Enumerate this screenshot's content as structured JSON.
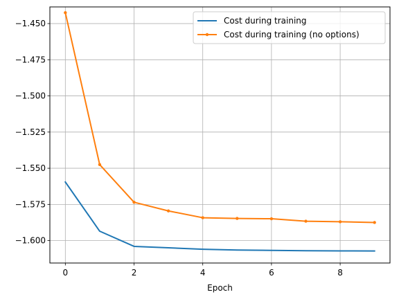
{
  "chart_data": {
    "type": "line",
    "xlabel": "Epoch",
    "ylabel": "",
    "title": "",
    "xlim": [
      -0.45,
      9.45
    ],
    "ylim": [
      -1.6155,
      -1.4385
    ],
    "xticks": [
      0,
      2,
      4,
      6,
      8
    ],
    "xtick_labels": [
      "0",
      "2",
      "4",
      "6",
      "8"
    ],
    "yticks": [
      -1.45,
      -1.475,
      -1.5,
      -1.525,
      -1.55,
      -1.575,
      -1.6
    ],
    "ytick_labels": [
      "−1.450",
      "−1.475",
      "−1.500",
      "−1.525",
      "−1.550",
      "−1.575",
      "−1.600"
    ],
    "grid": true,
    "legend_position": "top-right",
    "series": [
      {
        "name": "Cost during training",
        "color": "#1f77b4",
        "marker": "none",
        "x": [
          0,
          1,
          2,
          3,
          4,
          5,
          6,
          7,
          8,
          9
        ],
        "values": [
          -1.5595,
          -1.5935,
          -1.604,
          -1.605,
          -1.606,
          -1.6065,
          -1.6068,
          -1.607,
          -1.6071,
          -1.6072
        ]
      },
      {
        "name": "Cost during training (no options)",
        "color": "#ff7f0e",
        "marker": "dot",
        "x": [
          0,
          1,
          2,
          3,
          4,
          5,
          6,
          7,
          8,
          9
        ],
        "values": [
          -1.4425,
          -1.5475,
          -1.5735,
          -1.5795,
          -1.5842,
          -1.5847,
          -1.5849,
          -1.5866,
          -1.587,
          -1.5875
        ]
      }
    ]
  }
}
